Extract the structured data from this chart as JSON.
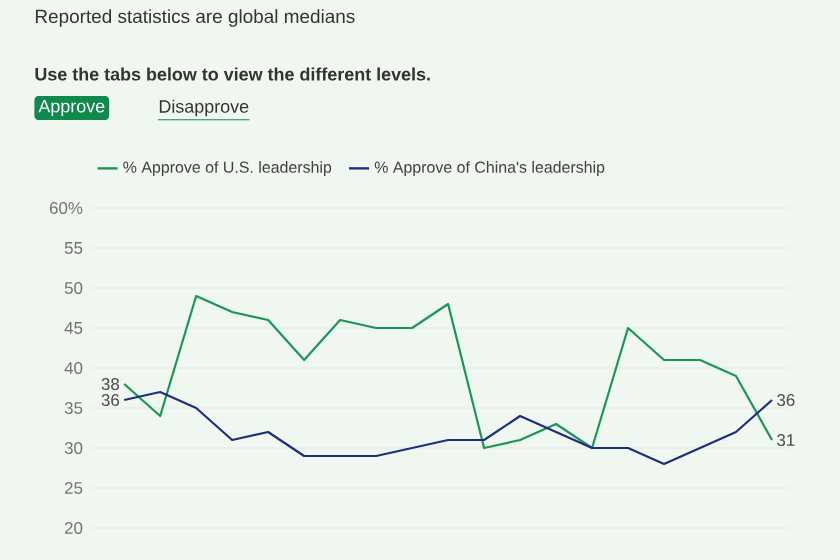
{
  "chart_data": {
    "type": "line",
    "subtitle": "Reported statistics are global medians",
    "annotations": [
      "Use the tabs below to view the different levels.",
      "Approve",
      "Disapprove"
    ],
    "categories": [
      null,
      null,
      null,
      null,
      null,
      null,
      null,
      null,
      null,
      null,
      null,
      null,
      null,
      null,
      null,
      null,
      null,
      null,
      null
    ],
    "series": [
      {
        "name": "% Approve of U.S. leadership",
        "color": "#1a9656",
        "values": [
          38,
          34,
          49,
          47,
          46,
          41,
          46,
          45,
          45,
          48,
          30,
          31,
          33,
          30,
          45,
          41,
          41,
          39,
          31
        ],
        "value_labels": [
          "38",
          null,
          null,
          null,
          null,
          null,
          null,
          null,
          null,
          null,
          null,
          null,
          null,
          null,
          null,
          null,
          null,
          null,
          "31"
        ]
      },
      {
        "name": "% Approve of China's leadership",
        "color": "#1c2f7e",
        "values": [
          36,
          37,
          35,
          31,
          32,
          29,
          29,
          29,
          30,
          31,
          31,
          34,
          32,
          30,
          30,
          28,
          30,
          32,
          36
        ],
        "value_labels": [
          "36",
          null,
          null,
          null,
          null,
          null,
          null,
          null,
          null,
          null,
          null,
          null,
          null,
          null,
          null,
          null,
          null,
          null,
          "36"
        ]
      }
    ],
    "ylim": [
      20,
      60
    ],
    "yticks": [
      20,
      25,
      30,
      35,
      40,
      45,
      50,
      55,
      {
        "value": 60,
        "label": "60%"
      }
    ],
    "grid": "y",
    "legend": "top left",
    "marker": "none",
    "line_style": "solid"
  }
}
